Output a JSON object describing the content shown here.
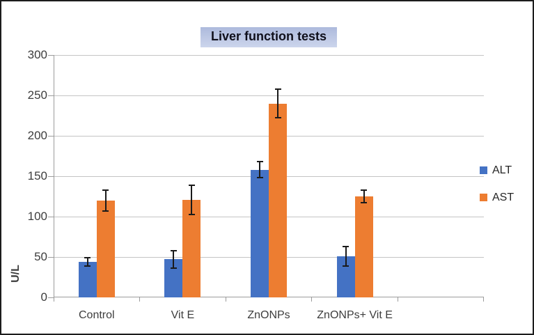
{
  "chart_data": {
    "type": "bar",
    "title": "Liver function tests",
    "xlabel": "",
    "ylabel": "U/L",
    "ylim": [
      0,
      300
    ],
    "yticks": [
      0,
      50,
      100,
      150,
      200,
      250,
      300
    ],
    "categories": [
      "Control",
      "Vit E",
      "ZnONPs",
      "ZnONPs+ Vit E"
    ],
    "series": [
      {
        "name": "ALT",
        "color": "#4472c4",
        "values": [
          44,
          47,
          158,
          51
        ],
        "errors": [
          5,
          11,
          10,
          12
        ]
      },
      {
        "name": "AST",
        "color": "#ed7d31",
        "values": [
          120,
          121,
          240,
          125
        ],
        "errors": [
          13,
          18,
          18,
          8
        ]
      }
    ],
    "grid": true,
    "error_bars": true,
    "legend_position": "right",
    "extra_empty_category_slots": 1
  },
  "colors": {
    "alt_series": "#4472c4",
    "ast_series": "#ed7d31",
    "gridline": "#c4c4c4",
    "axis_line": "#9b9b9b",
    "tick_label_text": "#3d3d3d",
    "error_bar": "#1a1a1a",
    "title_text": "#10101c",
    "title_bg_top": "#adbadc",
    "title_bg_bottom": "#ccd5ec",
    "frame_border": "#1c1c1c",
    "canvas_background": "#ffffff"
  }
}
